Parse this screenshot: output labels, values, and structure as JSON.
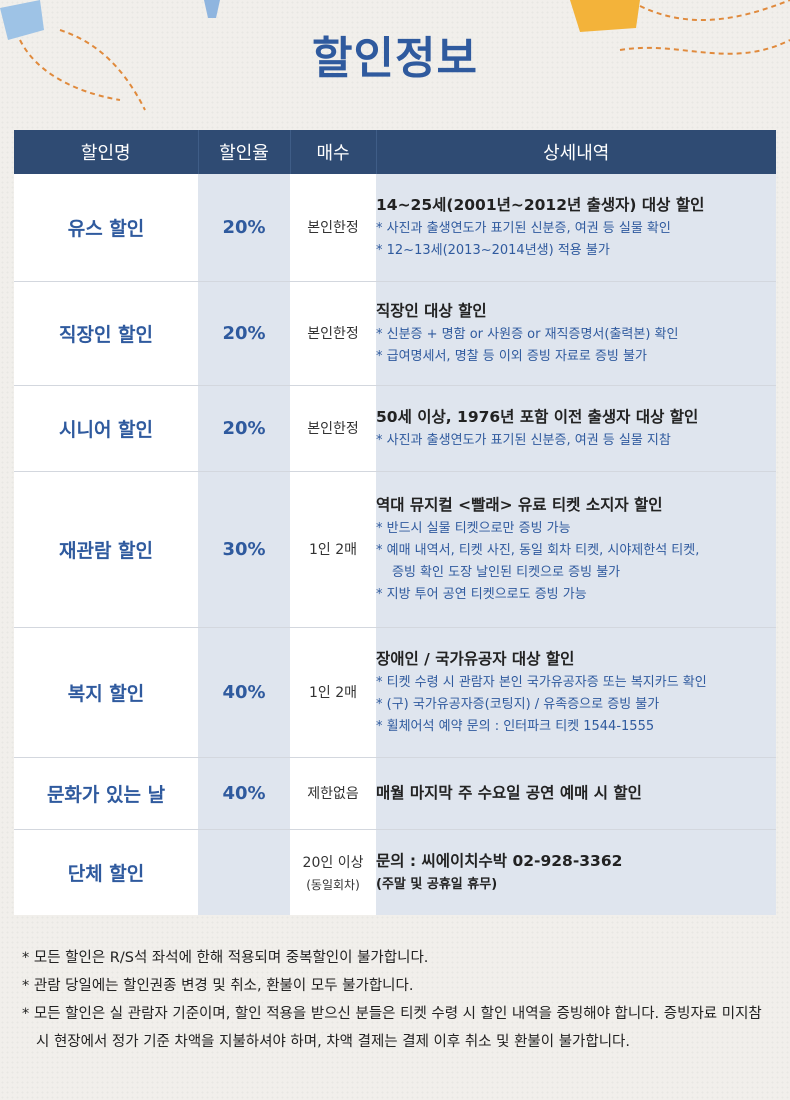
{
  "page": {
    "title": "할인정보"
  },
  "table": {
    "headers": [
      "할인명",
      "할인율",
      "매수",
      "상세내역"
    ],
    "rows": [
      {
        "name": "유스 할인",
        "rate": "20%",
        "qty": "본인한정",
        "qty_sub": "",
        "detail_title": "14~25세(2001년~2012년 출생자) 대상 할인",
        "detail_lines": [
          "* 사진과 출생연도가 표기된 신분증, 여권 등 실물 확인",
          "* 12~13세(2013~2014년생) 적용 불가"
        ]
      },
      {
        "name": "직장인 할인",
        "rate": "20%",
        "qty": "본인한정",
        "qty_sub": "",
        "detail_title": "직장인 대상 할인",
        "detail_lines": [
          "* 신분증 + 명함 or 사원증 or 재직증명서(출력본) 확인",
          "* 급여명세서, 명찰 등 이외 증빙 자료로 증빙 불가"
        ]
      },
      {
        "name": "시니어 할인",
        "rate": "20%",
        "qty": "본인한정",
        "qty_sub": "",
        "detail_title": "50세 이상, 1976년 포함 이전 출생자 대상 할인",
        "detail_lines": [
          "* 사진과 출생연도가 표기된 신분증, 여권 등 실물 지참"
        ]
      },
      {
        "name": "재관람 할인",
        "rate": "30%",
        "qty": "1인 2매",
        "qty_sub": "",
        "detail_title": "역대 뮤지컬 <빨래> 유료 티켓 소지자 할인",
        "detail_lines": [
          "* 반드시 실물 티켓으로만 증빙 가능",
          "* 예매 내역서, 티켓 사진, 동일 회차 티켓, 시야제한석 티켓,",
          "증빙 확인 도장 날인된 티켓으로 증빙 불가",
          "* 지방 투어 공연 티켓으로도 증빙 가능"
        ]
      },
      {
        "name": "복지 할인",
        "rate": "40%",
        "qty": "1인 2매",
        "qty_sub": "",
        "detail_title": "장애인 / 국가유공자 대상 할인",
        "detail_lines": [
          "* 티켓 수령 시 관람자 본인 국가유공자증 또는 복지카드 확인",
          "* (구) 국가유공자증(코팅지) / 유족증으로 증빙 불가",
          "* 휠체어석 예약 문의 : 인터파크 티켓 1544-1555"
        ]
      },
      {
        "name": "문화가 있는 날",
        "rate": "40%",
        "qty": "제한없음",
        "qty_sub": "",
        "detail_title": "매월 마지막 주 수요일 공연 예매 시 할인",
        "detail_lines": []
      },
      {
        "name": "단체 할인",
        "rate": "",
        "qty": "20인 이상",
        "qty_sub": "(동일회차)",
        "detail_title": "문의 : 씨에이치수박 02-928-3362",
        "detail_lines": [
          "(주말 및 공휴일 휴무)"
        ]
      }
    ]
  },
  "notes": [
    "* 모든 할인은 R/S석 좌석에 한해 적용되며 중복할인이 불가합니다.",
    "* 관람 당일에는 할인권종 변경 및 취소, 환불이 모두 불가합니다.",
    "* 모든 할인은 실 관람자 기준이며, 할인 적용을 받으신 분들은 티켓 수령 시 할인 내역을 증빙해야 합니다. 증빙자료 미지참 시 현장에서 정가 기준 차액을 지불하셔야 하며, 차액 결제는 결제 이후 취소 및 환불이 불가합니다."
  ],
  "colors": {
    "accent": "#2f5a9e",
    "header_bg": "#2f4b73",
    "detail_bg": "#dfe5ee",
    "page_bg": "#f1efeb"
  }
}
